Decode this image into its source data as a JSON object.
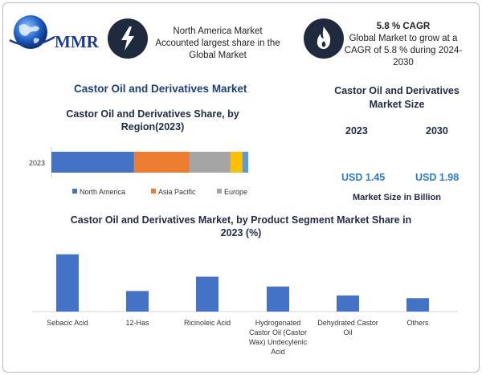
{
  "logo": {
    "text": "MMR"
  },
  "info_cards": [
    {
      "icon": "lightning-icon",
      "heading": "",
      "text_lines": [
        "North America Market",
        "Accounted largest share in the",
        "Global Market"
      ]
    },
    {
      "icon": "flame-icon",
      "heading": "5.8 % CAGR",
      "text_lines": [
        "Global Market to grow at a",
        "CAGR of 5.8 % during 2024-",
        "2030"
      ]
    }
  ],
  "main_title": "Castor Oil and Derivatives Market",
  "market_size": {
    "title_lines": [
      "Castor Oil and Derivatives",
      "Market Size"
    ],
    "year_a": "2023",
    "year_b": "2030",
    "value_a": "USD 1.45",
    "value_b": "USD 1.98",
    "note": "Market Size in Billion"
  },
  "colors": {
    "accent_dark": "#1f2a3e",
    "blue": "#4472c4",
    "orange": "#ed7d31",
    "gray": "#a5a5a5",
    "yellow": "#ffc000",
    "lightblue": "#5b9bd5",
    "value_blue": "#2a7bd6"
  },
  "chart_data": [
    {
      "type": "bar",
      "orientation": "horizontal",
      "stacked": true,
      "title": "Castor Oil and Derivatives Share, by Region(2023)",
      "title_lines": [
        "Castor Oil and Derivatives Share, by",
        "Region(2023)"
      ],
      "categories": [
        "2023"
      ],
      "series": [
        {
          "name": "North America",
          "values": [
            42
          ],
          "color": "#4472c4",
          "in_legend": true
        },
        {
          "name": "Asia Pacific",
          "values": [
            28
          ],
          "color": "#ed7d31",
          "in_legend": true
        },
        {
          "name": "Europe",
          "values": [
            21
          ],
          "color": "#a5a5a5",
          "in_legend": true
        },
        {
          "name": "",
          "values": [
            6
          ],
          "color": "#ffc000",
          "in_legend": false
        },
        {
          "name": "",
          "values": [
            3
          ],
          "color": "#5b9bd5",
          "in_legend": false
        }
      ],
      "xlim": [
        0,
        100
      ],
      "legend": "bottom",
      "grid": false
    },
    {
      "type": "bar",
      "title": "Castor Oil and Derivatives Market, by Product Segment Market Share in 2023 (%)",
      "title_lines": [
        "Castor Oil and Derivatives Market, by Product Segment Market Share in",
        "2023 (%)"
      ],
      "categories": [
        "Sebacic Acid",
        "12-Has",
        "Ricinoleic Acid",
        "Hydrogenated Castor Oil (Castor Wax) Undecylenic Acid",
        "Dehydrated Castor Oil",
        "Others"
      ],
      "category_label_lines": [
        [
          "Sebacic Acid"
        ],
        [
          "12-Has"
        ],
        [
          "Ricinoleic Acid"
        ],
        [
          "Hydrogenated",
          "Castor Oil (Castor",
          "Wax) Undecylenic",
          "Acid"
        ],
        [
          "Dehydrated Castor",
          "Oil"
        ],
        [
          "Others"
        ]
      ],
      "values": [
        32,
        11.5,
        19.5,
        14,
        9,
        7.5
      ],
      "ylim": [
        0,
        35
      ],
      "color": "#4472c4",
      "grid": false
    }
  ]
}
